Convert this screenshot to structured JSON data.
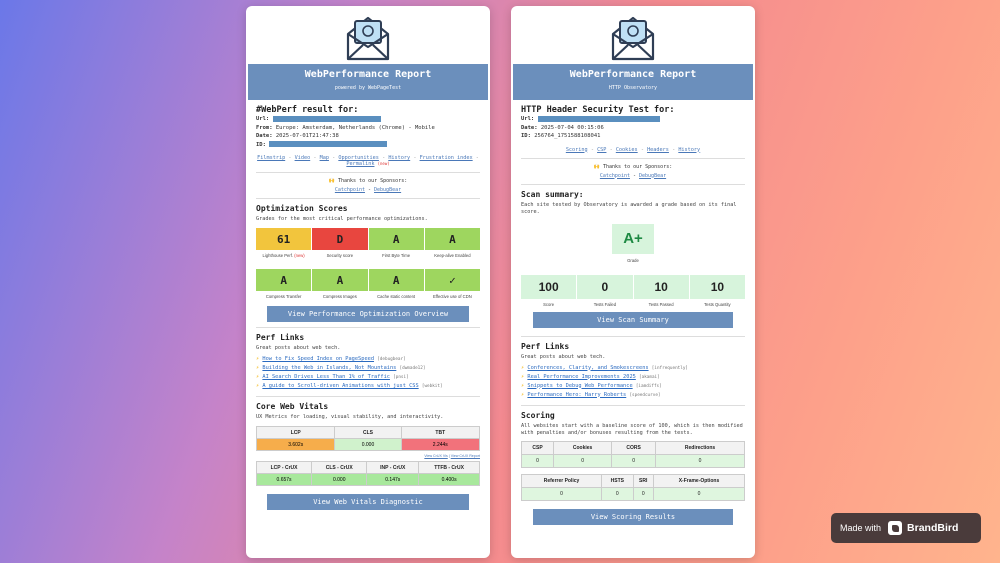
{
  "left": {
    "title": "WebPerformance Report",
    "subtitle": "powered by WebPageTest",
    "result_heading": "#WebPerf result for:",
    "url_label": "Url:",
    "from_label": "From:",
    "from_value": "Europe: Amsterdam, Netherlands (Chrome) - Mobile",
    "date_label": "Date:",
    "date_value": "2025-07-01T21:47:38",
    "id_label": "ID:",
    "nav": [
      "Filmstrip",
      "Video",
      "Map",
      "Opportunities",
      "History",
      "Frustration index",
      "Permalink"
    ],
    "nav_new": "(new)",
    "sponsors_label": "🙌 Thanks to our Sponsors:",
    "sponsors": [
      "Catchpoint",
      "DebugBear"
    ],
    "opt_title": "Optimization Scores",
    "opt_desc": "Grades for the most critical performance optimizations.",
    "scores_row1": [
      {
        "value": "61",
        "label": "Lighthouse Perf.",
        "new": "(new)",
        "color": "#f2c53d"
      },
      {
        "value": "D",
        "label": "Security score",
        "new": "",
        "color": "#e8463f"
      },
      {
        "value": "A",
        "label": "First Byte Time",
        "new": "",
        "color": "#9ed65f"
      },
      {
        "value": "A",
        "label": "Keep-alive Enabled",
        "new": "",
        "color": "#9ed65f"
      }
    ],
    "scores_row2": [
      {
        "value": "A",
        "label": "Compress Transfer",
        "new": "",
        "color": "#9ed65f"
      },
      {
        "value": "A",
        "label": "Compress Images",
        "new": "",
        "color": "#9ed65f"
      },
      {
        "value": "A",
        "label": "Cache static content",
        "new": "",
        "color": "#9ed65f"
      },
      {
        "value": "✓",
        "label": "Effective use of CDN",
        "new": "",
        "color": "#9ed65f"
      }
    ],
    "opt_button": "View Performance Optimization Overview",
    "perf_title": "Perf Links",
    "perf_desc": "Great posts about web tech.",
    "perf_links": [
      {
        "text": "How to Fix Speed Index on PageSpeed",
        "author": "[debugbear]"
      },
      {
        "text": "Building the Web in Islands, Not Mountains",
        "author": "[dwmade12]"
      },
      {
        "text": "AI Search Drives Less Than 1% of Traffic",
        "author": "[pnsi]"
      },
      {
        "text": "A guide to Scroll-driven Animations with just CSS",
        "author": "[webkit]"
      }
    ],
    "cwv_title": "Core Web Vitals",
    "cwv_desc": "UX Metrics for loading, visual stability, and interactivity.",
    "cwv_headers": [
      "LCP",
      "CLS",
      "TBT"
    ],
    "cwv_values": [
      "3.602s",
      "0.000",
      "2.244s"
    ],
    "crux_links": [
      "View CrUX Vis",
      "View CrUX Report"
    ],
    "crux_headers": [
      "LCP - CrUX",
      "CLS - CrUX",
      "INP - CrUX",
      "TTFB - CrUX"
    ],
    "crux_values": [
      "0.657s",
      "0.000",
      "0.147s",
      "0.400s"
    ],
    "cwv_button": "View Web Vitals Diagnostic"
  },
  "right": {
    "title": "WebPerformance Report",
    "subtitle": "HTTP Observatory",
    "result_heading": "HTTP Header Security Test for:",
    "url_label": "Url:",
    "date_label": "Date:",
    "date_value": "2025-07-04 00:15:06",
    "id_label": "ID:",
    "id_value": "256764_1751588108041",
    "nav": [
      "Scoring",
      "CSP",
      "Cookies",
      "Headers",
      "History"
    ],
    "sponsors_label": "🙌 Thanks to our Sponsors:",
    "sponsors": [
      "Catchpoint",
      "DebugBear"
    ],
    "scan_title": "Scan summary:",
    "scan_desc": "Each site tested by Observatory is awarded a grade based on its final score.",
    "grade": "A+",
    "grade_label": "Grade",
    "stats": [
      {
        "value": "100",
        "label": "Score"
      },
      {
        "value": "0",
        "label": "Tests Failed"
      },
      {
        "value": "10",
        "label": "Tests Passed"
      },
      {
        "value": "10",
        "label": "Tests Quantity"
      }
    ],
    "scan_button": "View Scan Summary",
    "perf_title": "Perf Links",
    "perf_desc": "Great posts about web tech.",
    "perf_links": [
      {
        "text": "Conferences, Clarity, and Smokescreens",
        "author": "[infrequently]"
      },
      {
        "text": "Real Performance Improvements 2025",
        "author": "[akamai]"
      },
      {
        "text": "Snippets to Debug Web Performance",
        "author": "[iamdiffs]"
      },
      {
        "text": "Performance Hero: Harry Roberts",
        "author": "[speedcurve]"
      }
    ],
    "scoring_title": "Scoring",
    "scoring_desc": "All websites start with a baseline score of 100, which is then modified with penalties and/or bonuses resulting from the tests.",
    "scoring_headers1": [
      "CSP",
      "Cookies",
      "CORS",
      "Redirections"
    ],
    "scoring_values1": [
      "0",
      "0",
      "0",
      "0"
    ],
    "scoring_headers2": [
      "Referrer Policy",
      "HSTS",
      "SRI",
      "X-Frame-Options"
    ],
    "scoring_values2": [
      "0",
      "0",
      "0",
      "0"
    ],
    "scoring_button": "View Scoring Results"
  },
  "badge": {
    "made_with": "Made with",
    "brand": "BrandBird"
  },
  "colors": {
    "accent": "#6b8fbc",
    "grade_green": "#1e8a43"
  }
}
